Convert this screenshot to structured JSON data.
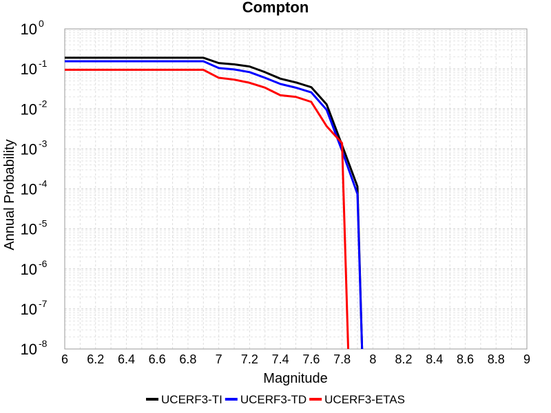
{
  "chart_data": {
    "type": "line",
    "title": "Compton",
    "xlabel": "Magnitude",
    "ylabel": "Annual Probability",
    "xlim": [
      6,
      9
    ],
    "ylim": [
      1e-08,
      1
    ],
    "yscale": "log",
    "grid": true,
    "legend_placement": "bottom",
    "x_ticks": [
      "6",
      "6.2",
      "6.4",
      "6.6",
      "6.8",
      "7",
      "7.2",
      "7.4",
      "7.6",
      "7.8",
      "8",
      "8.2",
      "8.4",
      "8.6",
      "8.8",
      "9"
    ],
    "y_ticks": [
      {
        "base": "10",
        "exp": "0"
      },
      {
        "base": "10",
        "exp": "-1"
      },
      {
        "base": "10",
        "exp": "-2"
      },
      {
        "base": "10",
        "exp": "-3"
      },
      {
        "base": "10",
        "exp": "-4"
      },
      {
        "base": "10",
        "exp": "-5"
      },
      {
        "base": "10",
        "exp": "-6"
      },
      {
        "base": "10",
        "exp": "-7"
      },
      {
        "base": "10",
        "exp": "-8"
      }
    ],
    "series": [
      {
        "name": "UCERF3-TI",
        "color": "#000000",
        "x": [
          6.0,
          6.9,
          7.0,
          7.1,
          7.2,
          7.3,
          7.4,
          7.5,
          7.6,
          7.7,
          7.8,
          7.9,
          7.93
        ],
        "y": [
          0.19,
          0.19,
          0.14,
          0.13,
          0.115,
          0.083,
          0.057,
          0.046,
          0.035,
          0.013,
          0.00125,
          0.000115,
          1e-08
        ]
      },
      {
        "name": "UCERF3-TD",
        "color": "#0000ff",
        "x": [
          6.0,
          6.9,
          7.0,
          7.1,
          7.2,
          7.3,
          7.4,
          7.5,
          7.6,
          7.7,
          7.8,
          7.9,
          7.93
        ],
        "y": [
          0.155,
          0.155,
          0.105,
          0.097,
          0.083,
          0.06,
          0.042,
          0.034,
          0.026,
          0.0095,
          0.0009,
          7.5e-05,
          1e-08
        ]
      },
      {
        "name": "UCERF3-ETAS",
        "color": "#ff0000",
        "x": [
          6.0,
          6.9,
          7.0,
          7.1,
          7.2,
          7.3,
          7.4,
          7.5,
          7.6,
          7.7,
          7.8,
          7.84
        ],
        "y": [
          0.095,
          0.095,
          0.06,
          0.054,
          0.045,
          0.034,
          0.022,
          0.02,
          0.015,
          0.0037,
          0.0014,
          1e-08
        ]
      }
    ]
  }
}
